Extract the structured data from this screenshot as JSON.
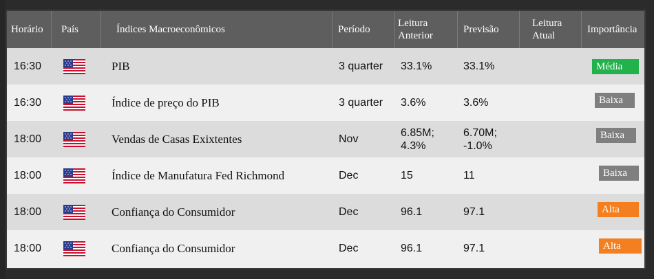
{
  "header": {
    "time": "Horário",
    "country": "País",
    "indices": "Índices Macroeconômicos",
    "period": "Período",
    "previous": "Leitura Anterior",
    "forecast": "Previsão",
    "actual": "Leitura Atual",
    "importance": "Importância"
  },
  "rows": [
    {
      "time": "16:30",
      "name": "PIB",
      "period": "3 quarter",
      "previous": "33.1%",
      "forecast": "33.1%",
      "importance": "Média",
      "color": "#22b24c"
    },
    {
      "time": "16:30",
      "name": "Índice de preço do PIB",
      "period": "3 quarter",
      "previous": "3.6%",
      "forecast": "3.6%",
      "importance": "Baixa",
      "color": "#7f7f7f"
    },
    {
      "time": "18:00",
      "name": "Vendas de Casas Exixtentes",
      "period": "Nov",
      "previous": "6.85M; 4.3%",
      "forecast": "6.70M; -1.0%",
      "importance": "Baixa",
      "color": "#7f7f7f"
    },
    {
      "time": "18:00",
      "name": "Índice de Manufatura Fed Richmond",
      "period": "Dec",
      "previous": "15",
      "forecast": "11",
      "importance": "Baixa",
      "color": "#7f7f7f"
    },
    {
      "time": "18:00",
      "name": "Confiança do Consumidor",
      "period": "Dec",
      "previous": "96.1",
      "forecast": "97.1",
      "importance": "Alta",
      "color": "#f47f20"
    },
    {
      "time": "18:00",
      "name": "Confiança do Consumidor",
      "period": "Dec",
      "previous": "96.1",
      "forecast": "97.1",
      "importance": "Alta",
      "color": "#f47f20"
    }
  ],
  "flag_icon": "us-flag-icon",
  "colors": {
    "header_bg": "#5e5e5e",
    "row_dark": "#dcdcdc",
    "row_light": "#f0f0f0"
  }
}
